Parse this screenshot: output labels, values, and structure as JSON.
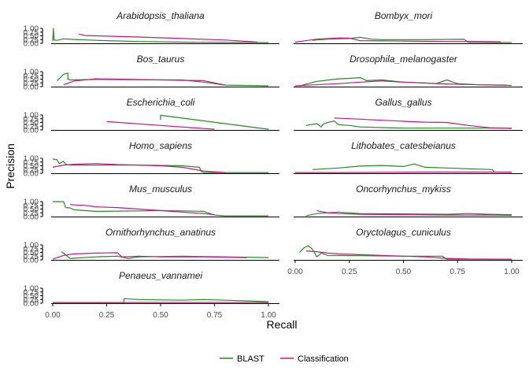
{
  "chart_data": {
    "type": "line",
    "xlabel": "Recall",
    "ylabel": "Precision",
    "xlim": [
      0,
      1
    ],
    "ylim": [
      0,
      1
    ],
    "x_ticks": [
      "0.00",
      "0.25",
      "0.50",
      "0.75",
      "1.00"
    ],
    "y_ticks": [
      "0.00",
      "0.25",
      "0.50",
      "0.75",
      "1.00"
    ],
    "legend": {
      "position": "bottom",
      "entries": [
        "BLAST",
        "Classification"
      ]
    },
    "colors": {
      "BLAST": "#228B22",
      "Classification": "#C71585"
    },
    "panels": [
      {
        "label": "Arabidopsis_thaliana",
        "BLAST": [
          [
            0,
            0.17
          ],
          [
            0.003,
            1.0
          ],
          [
            0.006,
            0.22
          ],
          [
            0.02,
            0.2
          ],
          [
            0.05,
            0.3
          ],
          [
            0.1,
            0.26
          ],
          [
            0.2,
            0.2
          ],
          [
            0.4,
            0.12
          ],
          [
            0.6,
            0.08
          ],
          [
            0.8,
            0.06
          ],
          [
            1.0,
            0.05
          ]
        ],
        "Classification": [
          [
            0.12,
            0.62
          ],
          [
            0.15,
            0.52
          ],
          [
            0.2,
            0.5
          ],
          [
            0.4,
            0.42
          ],
          [
            0.6,
            0.32
          ],
          [
            0.8,
            0.22
          ],
          [
            0.95,
            0.08
          ]
        ]
      },
      {
        "label": "Bombyx_mori",
        "BLAST": [
          [
            0.08,
            0.2
          ],
          [
            0.15,
            0.28
          ],
          [
            0.25,
            0.32
          ],
          [
            0.3,
            0.4
          ],
          [
            0.35,
            0.28
          ],
          [
            0.4,
            0.25
          ],
          [
            0.6,
            0.25
          ],
          [
            0.78,
            0.27
          ],
          [
            0.8,
            0.06
          ],
          [
            1.0,
            0.05
          ]
        ],
        "Classification": [
          [
            0,
            0.08
          ],
          [
            0.1,
            0.28
          ],
          [
            0.2,
            0.36
          ],
          [
            0.25,
            0.35
          ],
          [
            0.3,
            0.18
          ],
          [
            0.5,
            0.15
          ],
          [
            0.7,
            0.12
          ],
          [
            0.85,
            0.12
          ],
          [
            0.95,
            0.1
          ]
        ]
      },
      {
        "label": "Bos_taurus",
        "BLAST": [
          [
            0.02,
            0.4
          ],
          [
            0.05,
            0.82
          ],
          [
            0.07,
            0.9
          ],
          [
            0.07,
            0.5
          ],
          [
            0.08,
            0.45
          ],
          [
            0.2,
            0.48
          ],
          [
            0.4,
            0.46
          ],
          [
            0.6,
            0.45
          ],
          [
            0.7,
            0.3
          ],
          [
            0.8,
            0.1
          ],
          [
            1.0,
            0.05
          ]
        ],
        "Classification": [
          [
            0.05,
            0.12
          ],
          [
            0.1,
            0.38
          ],
          [
            0.2,
            0.52
          ],
          [
            0.3,
            0.5
          ],
          [
            0.5,
            0.45
          ],
          [
            0.7,
            0.4
          ],
          [
            0.8,
            0.1
          ]
        ]
      },
      {
        "label": "Drosophila_melanogaster",
        "BLAST": [
          [
            0.02,
            0.05
          ],
          [
            0.1,
            0.35
          ],
          [
            0.2,
            0.52
          ],
          [
            0.25,
            0.55
          ],
          [
            0.3,
            0.6
          ],
          [
            0.33,
            0.4
          ],
          [
            0.4,
            0.45
          ],
          [
            0.5,
            0.3
          ],
          [
            0.6,
            0.25
          ],
          [
            0.65,
            0.2
          ],
          [
            0.7,
            0.45
          ],
          [
            0.75,
            0.2
          ],
          [
            0.85,
            0.12
          ],
          [
            1.0,
            0.08
          ]
        ],
        "Classification": [
          [
            0,
            0.05
          ],
          [
            0.2,
            0.2
          ],
          [
            0.3,
            0.3
          ],
          [
            0.4,
            0.38
          ],
          [
            0.5,
            0.3
          ],
          [
            0.7,
            0.18
          ],
          [
            0.85,
            0.12
          ],
          [
            0.98,
            0.1
          ]
        ]
      },
      {
        "label": "Escherichia_coli",
        "BLAST": [
          [
            0.5,
            0.67
          ],
          [
            0.5,
            0.98
          ],
          [
            1.0,
            0.05
          ]
        ],
        "Classification": [
          [
            0.25,
            0.56
          ],
          [
            0.5,
            0.3
          ],
          [
            0.75,
            0.05
          ]
        ]
      },
      {
        "label": "Gallus_gallus",
        "BLAST": [
          [
            0.05,
            0.3
          ],
          [
            0.1,
            0.42
          ],
          [
            0.12,
            0.2
          ],
          [
            0.13,
            0.4
          ],
          [
            0.15,
            0.5
          ],
          [
            0.18,
            0.6
          ],
          [
            0.2,
            0.35
          ],
          [
            0.25,
            0.3
          ],
          [
            0.3,
            0.2
          ],
          [
            0.5,
            0.12
          ],
          [
            0.7,
            0.12
          ],
          [
            0.85,
            0.12
          ],
          [
            1.0,
            0.12
          ]
        ],
        "Classification": [
          [
            0.18,
            0.8
          ],
          [
            0.3,
            0.72
          ],
          [
            0.4,
            0.65
          ],
          [
            0.5,
            0.58
          ],
          [
            0.6,
            0.52
          ],
          [
            0.7,
            0.5
          ],
          [
            0.8,
            0.3
          ],
          [
            0.9,
            0.15
          ],
          [
            1.0,
            0.1
          ]
        ]
      },
      {
        "label": "Homo_sapiens",
        "BLAST": [
          [
            0,
            0.95
          ],
          [
            0.02,
            0.9
          ],
          [
            0.03,
            0.65
          ],
          [
            0.05,
            0.8
          ],
          [
            0.06,
            0.6
          ],
          [
            0.08,
            0.55
          ],
          [
            0.2,
            0.55
          ],
          [
            0.4,
            0.55
          ],
          [
            0.6,
            0.5
          ],
          [
            0.68,
            0.4
          ],
          [
            0.69,
            0.1
          ],
          [
            0.7,
            0.05
          ],
          [
            1.0,
            0.05
          ]
        ],
        "Classification": [
          [
            0,
            0.4
          ],
          [
            0.05,
            0.55
          ],
          [
            0.1,
            0.6
          ],
          [
            0.2,
            0.65
          ],
          [
            0.3,
            0.58
          ],
          [
            0.4,
            0.55
          ],
          [
            0.5,
            0.5
          ],
          [
            0.6,
            0.4
          ],
          [
            0.7,
            0.15
          ],
          [
            0.8,
            0.05
          ]
        ]
      },
      {
        "label": "Lithobates_catesbeianus",
        "BLAST": [
          [
            0.08,
            0.25
          ],
          [
            0.2,
            0.35
          ],
          [
            0.3,
            0.48
          ],
          [
            0.4,
            0.52
          ],
          [
            0.5,
            0.45
          ],
          [
            0.55,
            0.62
          ],
          [
            0.6,
            0.4
          ],
          [
            0.7,
            0.35
          ],
          [
            0.8,
            0.3
          ],
          [
            0.91,
            0.25
          ],
          [
            0.92,
            0.08
          ],
          [
            1.0,
            0.06
          ]
        ],
        "Classification": [
          [
            0,
            0.05
          ],
          [
            0.2,
            0.05
          ],
          [
            0.4,
            0.06
          ],
          [
            0.6,
            0.08
          ],
          [
            0.8,
            0.08
          ],
          [
            1.0,
            0.08
          ]
        ]
      },
      {
        "label": "Mus_musculus",
        "BLAST": [
          [
            0,
            1.0
          ],
          [
            0.05,
            1.0
          ],
          [
            0.06,
            0.6
          ],
          [
            0.08,
            0.58
          ],
          [
            0.1,
            0.45
          ],
          [
            0.2,
            0.35
          ],
          [
            0.4,
            0.38
          ],
          [
            0.5,
            0.4
          ],
          [
            0.6,
            0.38
          ],
          [
            0.7,
            0.35
          ],
          [
            0.75,
            0.1
          ],
          [
            0.8,
            0.05
          ],
          [
            1.0,
            0.05
          ]
        ],
        "Classification": [
          [
            0.08,
            0.8
          ],
          [
            0.1,
            0.78
          ],
          [
            0.15,
            0.75
          ],
          [
            0.2,
            0.65
          ],
          [
            0.3,
            0.6
          ],
          [
            0.5,
            0.4
          ],
          [
            0.6,
            0.3
          ],
          [
            0.7,
            0.2
          ],
          [
            0.75,
            0.12
          ]
        ]
      },
      {
        "label": "Oncorhynchus_mykiss",
        "BLAST": [
          [
            0.05,
            0.05
          ],
          [
            0.1,
            0.2
          ],
          [
            0.2,
            0.3
          ],
          [
            0.3,
            0.2
          ],
          [
            0.5,
            0.18
          ],
          [
            0.7,
            0.15
          ],
          [
            0.8,
            0.2
          ],
          [
            0.9,
            0.15
          ],
          [
            1.0,
            0.12
          ]
        ],
        "Classification": [
          [
            0.1,
            0.4
          ],
          [
            0.15,
            0.25
          ],
          [
            0.2,
            0.2
          ],
          [
            0.3,
            0.15
          ],
          [
            0.5,
            0.12
          ],
          [
            0.7,
            0.1
          ],
          [
            0.9,
            0.1
          ],
          [
            1.0,
            0.08
          ]
        ]
      },
      {
        "label": "Ornithorhynchus_anatinus",
        "BLAST": [
          [
            0.04,
            0.55
          ],
          [
            0.05,
            0.45
          ],
          [
            0.08,
            0.1
          ],
          [
            0.2,
            0.2
          ],
          [
            0.3,
            0.25
          ],
          [
            0.35,
            0.1
          ],
          [
            0.4,
            0.2
          ],
          [
            0.6,
            0.25
          ],
          [
            0.8,
            0.2
          ],
          [
            1.0,
            0.15
          ]
        ],
        "Classification": [
          [
            0,
            0.05
          ],
          [
            0.05,
            0.3
          ],
          [
            0.1,
            0.4
          ],
          [
            0.2,
            0.45
          ],
          [
            0.3,
            0.48
          ],
          [
            0.32,
            0.2
          ],
          [
            0.4,
            0.25
          ],
          [
            0.5,
            0.2
          ],
          [
            0.7,
            0.2
          ],
          [
            0.9,
            0.15
          ]
        ]
      },
      {
        "label": "Oryctolagus_cuniculus",
        "BLAST": [
          [
            0.02,
            0.5
          ],
          [
            0.04,
            0.8
          ],
          [
            0.06,
            0.95
          ],
          [
            0.08,
            0.7
          ],
          [
            0.1,
            0.2
          ],
          [
            0.12,
            0.45
          ],
          [
            0.15,
            0.3
          ],
          [
            0.3,
            0.28
          ],
          [
            0.5,
            0.25
          ],
          [
            0.68,
            0.25
          ],
          [
            0.7,
            0.05
          ],
          [
            1.0,
            0.05
          ]
        ],
        "Classification": [
          [
            0.05,
            0.6
          ],
          [
            0.1,
            0.55
          ],
          [
            0.15,
            0.45
          ],
          [
            0.2,
            0.4
          ],
          [
            0.3,
            0.35
          ],
          [
            0.4,
            0.3
          ],
          [
            0.5,
            0.25
          ],
          [
            0.6,
            0.2
          ],
          [
            0.7,
            0.1
          ],
          [
            0.8,
            0.06
          ],
          [
            1.0,
            0.05
          ]
        ]
      },
      {
        "label": "Penaeus_vannamei",
        "BLAST": [
          [
            0,
            0.05
          ],
          [
            0.3,
            0.05
          ],
          [
            0.33,
            0.05
          ],
          [
            0.33,
            0.3
          ],
          [
            0.4,
            0.25
          ],
          [
            0.5,
            0.22
          ],
          [
            0.6,
            0.2
          ],
          [
            0.7,
            0.25
          ],
          [
            0.8,
            0.2
          ],
          [
            0.9,
            0.15
          ],
          [
            1.0,
            0.1
          ]
        ],
        "Classification": [
          [
            0,
            0.05
          ],
          [
            0.25,
            0.05
          ],
          [
            0.5,
            0.05
          ],
          [
            0.75,
            0.05
          ],
          [
            1.0,
            0.05
          ]
        ]
      }
    ]
  }
}
